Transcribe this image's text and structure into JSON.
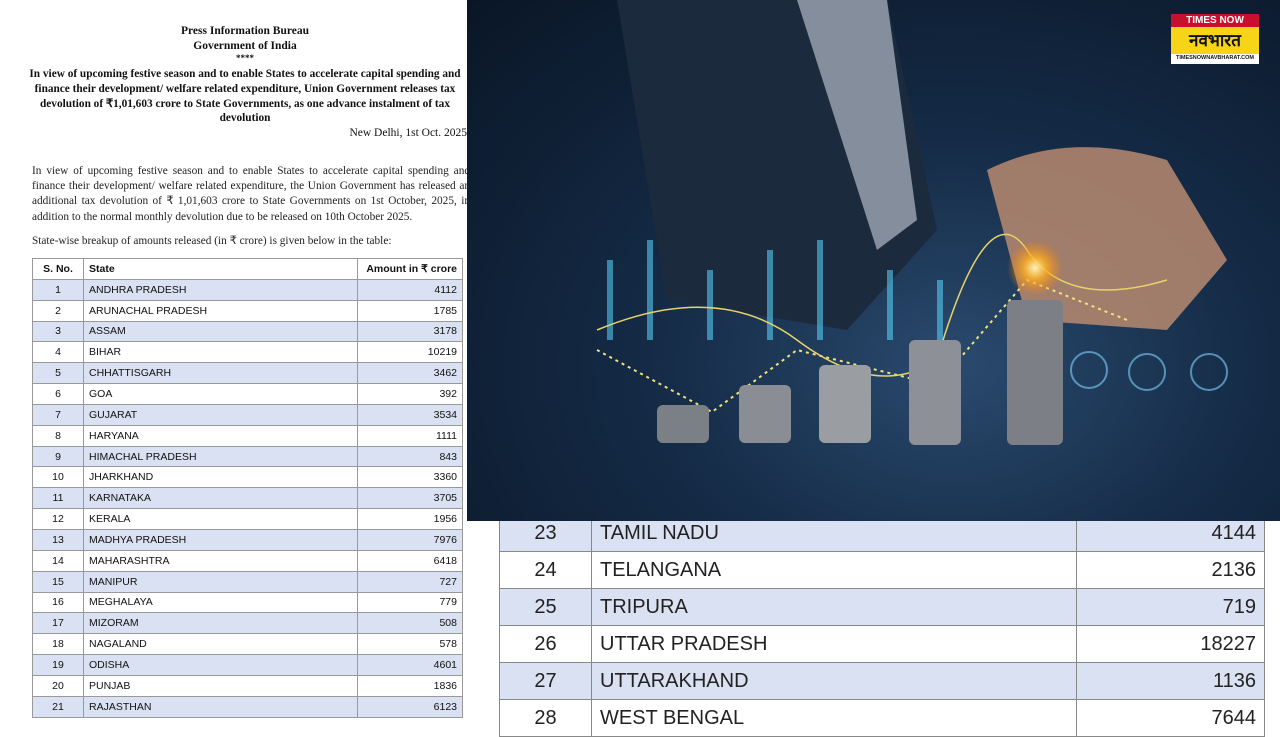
{
  "document": {
    "org": "Press Information Bureau",
    "gov": "Government of India",
    "stars": "****",
    "headline": "In view of upcoming festive season and to enable States to accelerate capital spending and finance their development/ welfare related expenditure, Union Government releases tax devolution of ₹1,01,603 crore to State Governments, as one advance instalment of tax devolution",
    "dateline": "New Delhi, 1st Oct. 2025",
    "body": "In view of upcoming festive season and to enable States to accelerate capital spending and finance their development/ welfare related expenditure, the Union Government has released an additional tax devolution of ₹ 1,01,603 crore to State Governments on 1st October, 2025, in addition to the normal monthly devolution due to be released on 10th October 2025.",
    "intro": "State-wise breakup of amounts released (in ₹ crore) is given below in the table:",
    "table": {
      "headers": [
        "S. No.",
        "State",
        "Amount in ₹ crore"
      ],
      "rows": [
        [
          "1",
          "ANDHRA PRADESH",
          "4112"
        ],
        [
          "2",
          "ARUNACHAL PRADESH",
          "1785"
        ],
        [
          "3",
          "ASSAM",
          "3178"
        ],
        [
          "4",
          "BIHAR",
          "10219"
        ],
        [
          "5",
          "CHHATTISGARH",
          "3462"
        ],
        [
          "6",
          "GOA",
          "392"
        ],
        [
          "7",
          "GUJARAT",
          "3534"
        ],
        [
          "8",
          "HARYANA",
          "1111"
        ],
        [
          "9",
          "HIMACHAL PRADESH",
          "843"
        ],
        [
          "10",
          "JHARKHAND",
          "3360"
        ],
        [
          "11",
          "KARNATAKA",
          "3705"
        ],
        [
          "12",
          "KERALA",
          "1956"
        ],
        [
          "13",
          "MADHYA PRADESH",
          "7976"
        ],
        [
          "14",
          "MAHARASHTRA",
          "6418"
        ],
        [
          "15",
          "MANIPUR",
          "727"
        ],
        [
          "16",
          "MEGHALAYA",
          "779"
        ],
        [
          "17",
          "MIZORAM",
          "508"
        ],
        [
          "18",
          "NAGALAND",
          "578"
        ],
        [
          "19",
          "ODISHA",
          "4601"
        ],
        [
          "20",
          "PUNJAB",
          "1836"
        ],
        [
          "21",
          "RAJASTHAN",
          "6123"
        ]
      ]
    }
  },
  "zoomed_table": {
    "rows": [
      [
        "23",
        "TAMIL NADU",
        "4144"
      ],
      [
        "24",
        "TELANGANA",
        "2136"
      ],
      [
        "25",
        "TRIPURA",
        "719"
      ],
      [
        "26",
        "UTTAR PRADESH",
        "18227"
      ],
      [
        "27",
        "UTTARAKHAND",
        "1136"
      ],
      [
        "28",
        "WEST BENGAL",
        "7644"
      ]
    ]
  },
  "logo": {
    "top": "TIMES NOW",
    "main": "नवभारत",
    "url": "TIMESNOWNAVBHARAT.COM"
  },
  "colors": {
    "row_shade": "#d9e1f2",
    "logo_red": "#c8102e",
    "logo_yellow": "#f7d417"
  }
}
